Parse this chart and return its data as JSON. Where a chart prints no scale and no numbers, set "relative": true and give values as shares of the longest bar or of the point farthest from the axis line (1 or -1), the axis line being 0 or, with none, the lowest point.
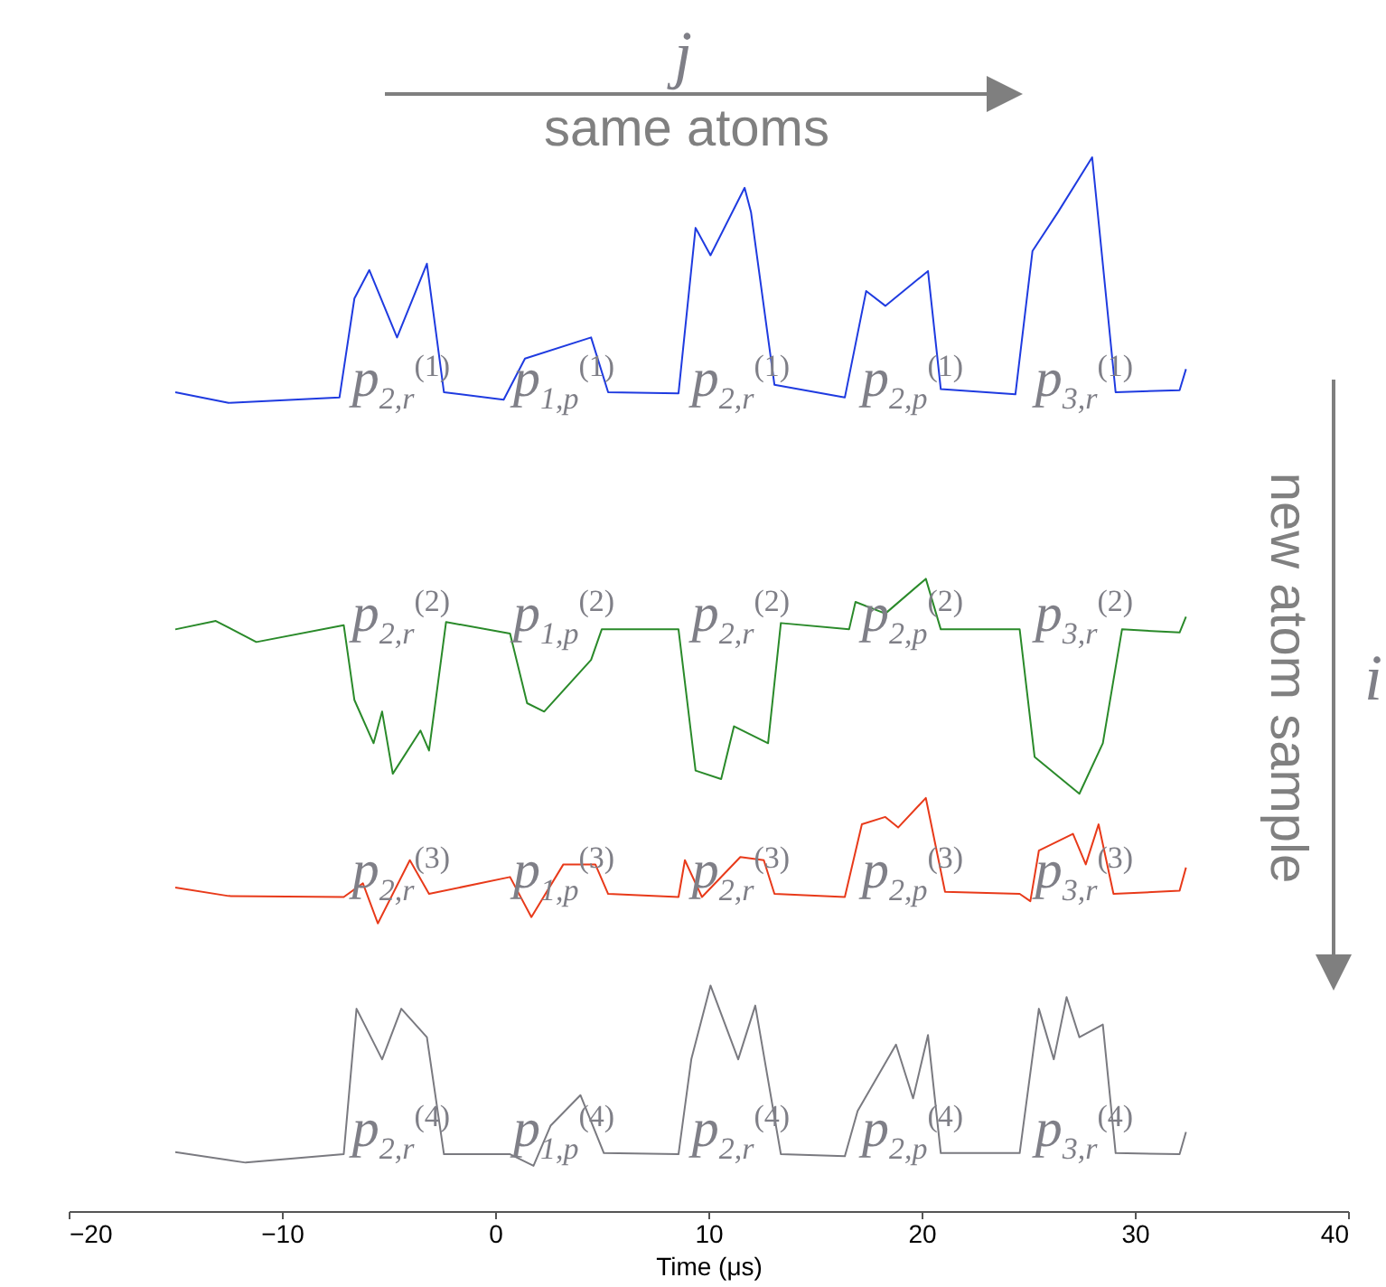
{
  "chart_data": {
    "type": "line",
    "relative": true,
    "xlabel": "Time (μs)",
    "xlim": [
      -20,
      40
    ],
    "xticks": [
      -20,
      -10,
      0,
      10,
      20,
      30,
      40
    ],
    "grid": false,
    "legend": false,
    "line_style": "solid",
    "marker": "none",
    "series": [
      {
        "color": "#1f3be0",
        "x": [
          -15.0,
          -12.5,
          -7.3,
          -6.6,
          -5.9,
          -4.6,
          -3.2,
          -2.4,
          0.4,
          1.4,
          4.5,
          5.3,
          8.6,
          9.4,
          10.1,
          11.7,
          12.0,
          13.1,
          16.4,
          17.4,
          18.3,
          20.3,
          20.9,
          24.4,
          25.2,
          26.4,
          28.0,
          29.1,
          32.1,
          32.4
        ],
        "values": [
          0.777,
          0.767,
          0.772,
          0.866,
          0.893,
          0.829,
          0.899,
          0.777,
          0.77,
          0.809,
          0.829,
          0.777,
          0.776,
          0.933,
          0.907,
          0.971,
          0.948,
          0.784,
          0.772,
          0.873,
          0.859,
          0.892,
          0.78,
          0.775,
          0.911,
          0.948,
          1,
          0.777,
          0.779,
          0.799
        ]
      },
      {
        "color": "#2a8a2a",
        "x": [
          -15.0,
          -13.1,
          -11.2,
          -7.1,
          -6.6,
          -5.7,
          -5.3,
          -4.8,
          -3.5,
          -3.1,
          -2.3,
          0.7,
          1.5,
          2.3,
          4.5,
          5.0,
          8.6,
          9.4,
          10.6,
          11.2,
          12.8,
          13.4,
          16.6,
          16.9,
          18.3,
          20.2,
          20.9,
          24.6,
          25.3,
          27.4,
          28.5,
          29.4,
          32.1,
          32.4
        ],
        "values": [
          0.552,
          0.56,
          0.54,
          0.556,
          0.485,
          0.444,
          0.474,
          0.415,
          0.456,
          0.437,
          0.559,
          0.548,
          0.482,
          0.474,
          0.523,
          0.552,
          0.552,
          0.418,
          0.41,
          0.46,
          0.444,
          0.558,
          0.552,
          0.578,
          0.567,
          0.6,
          0.552,
          0.552,
          0.431,
          0.396,
          0.444,
          0.552,
          0.549,
          0.564
        ]
      },
      {
        "color": "#e83a1a",
        "x": [
          -15.0,
          -12.5,
          -7.1,
          -6.2,
          -5.5,
          -4.0,
          -3.1,
          0.7,
          1.7,
          3.2,
          4.7,
          5.3,
          8.6,
          8.9,
          9.7,
          11.5,
          12.6,
          13.1,
          16.4,
          17.2,
          18.3,
          18.9,
          20.2,
          21.1,
          24.6,
          25.1,
          25.5,
          27.1,
          27.7,
          28.3,
          29.0,
          32.1,
          32.4
        ],
        "values": [
          0.307,
          0.299,
          0.298,
          0.311,
          0.273,
          0.333,
          0.301,
          0.317,
          0.279,
          0.329,
          0.329,
          0.301,
          0.298,
          0.333,
          0.298,
          0.336,
          0.333,
          0.301,
          0.298,
          0.367,
          0.374,
          0.364,
          0.392,
          0.303,
          0.301,
          0.294,
          0.342,
          0.358,
          0.329,
          0.367,
          0.301,
          0.304,
          0.326
        ]
      },
      {
        "color": "#7a7a80",
        "x": [
          -15.0,
          -11.7,
          -7.1,
          -6.5,
          -5.3,
          -4.4,
          -3.2,
          -2.4,
          0.7,
          1.8,
          2.6,
          4.0,
          5.1,
          8.6,
          9.2,
          10.1,
          11.4,
          12.2,
          13.4,
          16.4,
          17.0,
          18.8,
          19.6,
          20.3,
          20.9,
          24.6,
          25.5,
          26.2,
          26.8,
          27.4,
          28.5,
          29.1,
          32.1,
          32.4
        ],
        "values": [
          0.056,
          0.046,
          0.054,
          0.192,
          0.144,
          0.192,
          0.165,
          0.054,
          0.054,
          0.043,
          0.081,
          0.11,
          0.055,
          0.054,
          0.144,
          0.214,
          0.144,
          0.195,
          0.054,
          0.052,
          0.095,
          0.158,
          0.107,
          0.167,
          0.055,
          0.055,
          0.192,
          0.144,
          0.203,
          0.165,
          0.177,
          0.055,
          0.054,
          0.075
        ]
      }
    ],
    "annotations": [
      "j",
      "same atoms",
      "new atom sample",
      "i",
      "p$_{2,r}$$^{(1)}$",
      "p$_{1,p}$$^{(1)}$",
      "p$_{2,r}$$^{(1)}$",
      "p$_{2,p}$$^{(1)}$",
      "p$_{3,r}$$^{(1)}$",
      "p$_{2,r}$$^{(2)}$",
      "p$_{1,p}$$^{(2)}$",
      "p$_{2,r}$$^{(2)}$",
      "p$_{2,p}$$^{(2)}$",
      "p$_{3,r}$$^{(2)}$",
      "p$_{2,r}$$^{(3)}$",
      "p$_{1,p}$$^{(3)}$",
      "p$_{2,r}$$^{(3)}$",
      "p$_{2,p}$$^{(3)}$",
      "p$_{3,r}$$^{(3)}$",
      "p$_{2,r}$$^{(4)}$",
      "p$_{1,p}$$^{(4)}$",
      "p$_{2,r}$$^{(4)}$",
      "p$_{2,p}$$^{(4)}$",
      "p$_{3,r}$$^{(4)}$"
    ]
  }
}
